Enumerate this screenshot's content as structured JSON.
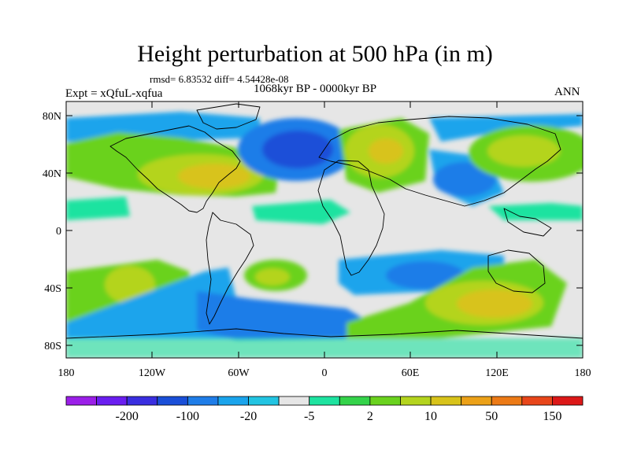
{
  "header": {
    "title": "Height perturbation at 500 hPa (in m)",
    "stats": "rmsd= 6.83532 diff= 4.54428e-08",
    "period": "1068kyr BP - 0000kyr BP",
    "experiment": "Expt = xQfuL-xqfua",
    "season": "ANN"
  },
  "map": {
    "lat_ticks": [
      "80N",
      "40N",
      "0",
      "40S",
      "80S"
    ],
    "lon_ticks": [
      "180",
      "120W",
      "60W",
      "0",
      "60E",
      "120E",
      "180"
    ]
  },
  "colorbar": {
    "colors": [
      "#9b1fe8",
      "#6a1ef0",
      "#3a2ee0",
      "#1a4fd8",
      "#1f7de8",
      "#1aa4ec",
      "#22c4e2",
      "#e6e6e6",
      "#1ee3a0",
      "#34d34a",
      "#6ad21e",
      "#b4d41e",
      "#d8c31a",
      "#eca118",
      "#ec7a16",
      "#e8461a",
      "#dc1818"
    ],
    "labels": [
      "-200",
      "-100",
      "-20",
      "-5",
      "2",
      "10",
      "50",
      "150"
    ]
  }
}
